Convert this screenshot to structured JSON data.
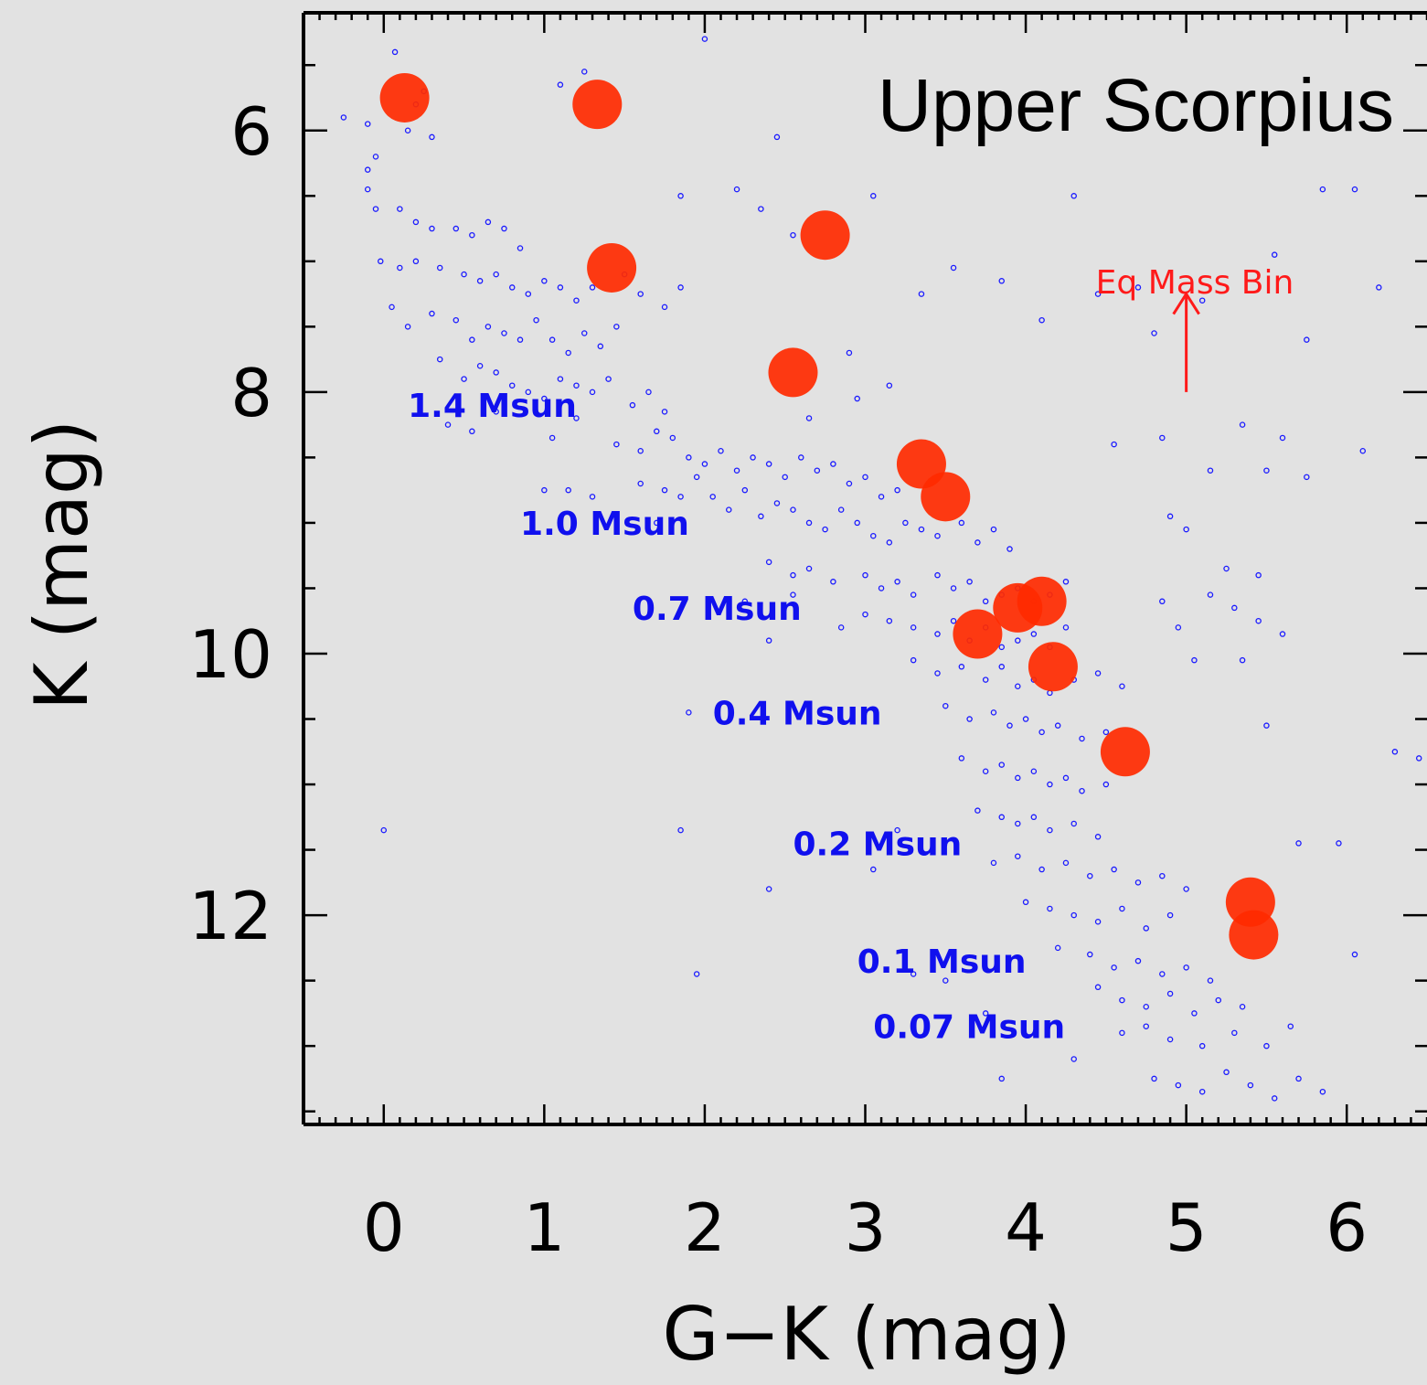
{
  "chart_data": {
    "type": "scatter",
    "title": "Upper Scorpius",
    "xlabel": "G−K (mag)",
    "ylabel": "K (mag)",
    "xlim": [
      -0.5,
      6.5
    ],
    "ylim": [
      13.6,
      5.1
    ],
    "y_inverted": true,
    "xticks": [
      "0",
      "1",
      "2",
      "3",
      "4",
      "5",
      "6"
    ],
    "yticks": [
      "6",
      "8",
      "10",
      "12"
    ],
    "grid": false,
    "colors": {
      "members": "#1a1aff",
      "binaries": "#ff2a00",
      "mass_labels": "#1010ee",
      "annotation": "#ff1a1a"
    },
    "annotation": {
      "text": "Eq Mass Bin",
      "arrow_from": [
        5.0,
        8.0
      ],
      "arrow_to": [
        5.0,
        7.25
      ]
    },
    "mass_labels": [
      {
        "text": "1.4 Msun",
        "x": 0.15,
        "y": 8.1
      },
      {
        "text": "1.0 Msun",
        "x": 0.85,
        "y": 9.0
      },
      {
        "text": "0.7 Msun",
        "x": 1.55,
        "y": 9.65
      },
      {
        "text": "0.4 Msun",
        "x": 2.05,
        "y": 10.45
      },
      {
        "text": "0.2 Msun",
        "x": 2.55,
        "y": 11.45
      },
      {
        "text": "0.1 Msun",
        "x": 2.95,
        "y": 12.35
      },
      {
        "text": "0.07 Msun",
        "x": 3.05,
        "y": 12.85
      }
    ],
    "series": [
      {
        "marker": "filled-circle",
        "points": [
          [
            0.13,
            5.75
          ],
          [
            1.33,
            5.8
          ],
          [
            1.42,
            7.05
          ],
          [
            2.75,
            6.8
          ],
          [
            2.55,
            7.85
          ],
          [
            3.35,
            8.55
          ],
          [
            3.5,
            8.8
          ],
          [
            3.7,
            9.85
          ],
          [
            3.95,
            9.65
          ],
          [
            4.1,
            9.6
          ],
          [
            4.17,
            10.1
          ],
          [
            4.62,
            10.75
          ],
          [
            5.4,
            11.9
          ],
          [
            5.42,
            12.15
          ]
        ]
      },
      {
        "marker": "open-circle",
        "points": [
          [
            0.07,
            5.4
          ],
          [
            0.2,
            5.8
          ],
          [
            0.25,
            5.7
          ],
          [
            -0.25,
            5.9
          ],
          [
            -0.1,
            5.95
          ],
          [
            0.15,
            6.0
          ],
          [
            0.3,
            6.05
          ],
          [
            -0.05,
            6.2
          ],
          [
            -0.1,
            6.3
          ],
          [
            -0.1,
            6.45
          ],
          [
            -0.05,
            6.6
          ],
          [
            0.1,
            6.6
          ],
          [
            0.2,
            6.7
          ],
          [
            0.3,
            6.75
          ],
          [
            0.45,
            6.75
          ],
          [
            0.55,
            6.8
          ],
          [
            0.65,
            6.7
          ],
          [
            0.75,
            6.75
          ],
          [
            0.85,
            6.9
          ],
          [
            -0.02,
            7.0
          ],
          [
            0.1,
            7.05
          ],
          [
            0.2,
            7.0
          ],
          [
            0.35,
            7.05
          ],
          [
            0.5,
            7.1
          ],
          [
            0.6,
            7.15
          ],
          [
            0.7,
            7.1
          ],
          [
            0.8,
            7.2
          ],
          [
            0.9,
            7.25
          ],
          [
            1.0,
            7.15
          ],
          [
            1.1,
            7.2
          ],
          [
            1.2,
            7.3
          ],
          [
            1.3,
            7.2
          ],
          [
            1.5,
            7.1
          ],
          [
            1.6,
            7.25
          ],
          [
            1.75,
            7.35
          ],
          [
            1.85,
            7.2
          ],
          [
            0.05,
            7.35
          ],
          [
            0.15,
            7.5
          ],
          [
            0.3,
            7.4
          ],
          [
            0.45,
            7.45
          ],
          [
            0.55,
            7.6
          ],
          [
            0.65,
            7.5
          ],
          [
            0.75,
            7.55
          ],
          [
            0.85,
            7.6
          ],
          [
            0.95,
            7.45
          ],
          [
            1.05,
            7.6
          ],
          [
            1.15,
            7.7
          ],
          [
            1.25,
            7.55
          ],
          [
            1.35,
            7.65
          ],
          [
            1.45,
            7.5
          ],
          [
            0.35,
            7.75
          ],
          [
            0.5,
            7.9
          ],
          [
            0.6,
            7.8
          ],
          [
            0.7,
            7.85
          ],
          [
            0.8,
            7.95
          ],
          [
            0.9,
            8.0
          ],
          [
            1.0,
            8.05
          ],
          [
            1.1,
            7.9
          ],
          [
            1.2,
            7.95
          ],
          [
            1.3,
            8.0
          ],
          [
            1.4,
            7.9
          ],
          [
            1.55,
            8.1
          ],
          [
            1.65,
            8.0
          ],
          [
            1.75,
            8.15
          ],
          [
            0.4,
            8.25
          ],
          [
            0.55,
            8.3
          ],
          [
            0.7,
            8.15
          ],
          [
            1.05,
            8.35
          ],
          [
            1.2,
            8.2
          ],
          [
            1.45,
            8.4
          ],
          [
            1.6,
            8.45
          ],
          [
            1.7,
            8.3
          ],
          [
            1.8,
            8.35
          ],
          [
            1.9,
            8.5
          ],
          [
            2.0,
            8.55
          ],
          [
            2.1,
            8.45
          ],
          [
            2.2,
            8.6
          ],
          [
            2.3,
            8.5
          ],
          [
            2.4,
            8.55
          ],
          [
            2.5,
            8.65
          ],
          [
            2.6,
            8.5
          ],
          [
            2.7,
            8.6
          ],
          [
            2.8,
            8.55
          ],
          [
            2.9,
            8.7
          ],
          [
            3.0,
            8.65
          ],
          [
            3.1,
            8.8
          ],
          [
            3.2,
            8.75
          ],
          [
            1.6,
            8.7
          ],
          [
            1.75,
            8.75
          ],
          [
            1.85,
            8.8
          ],
          [
            1.95,
            8.65
          ],
          [
            2.05,
            8.8
          ],
          [
            2.15,
            8.9
          ],
          [
            2.25,
            8.75
          ],
          [
            2.35,
            8.95
          ],
          [
            2.45,
            8.85
          ],
          [
            2.55,
            8.9
          ],
          [
            2.65,
            9.0
          ],
          [
            2.75,
            9.05
          ],
          [
            2.85,
            8.9
          ],
          [
            2.95,
            9.0
          ],
          [
            3.05,
            9.1
          ],
          [
            3.15,
            9.15
          ],
          [
            3.25,
            9.0
          ],
          [
            3.35,
            9.05
          ],
          [
            3.45,
            9.1
          ],
          [
            3.6,
            9.0
          ],
          [
            3.7,
            9.15
          ],
          [
            3.8,
            9.05
          ],
          [
            3.9,
            9.2
          ],
          [
            1.0,
            8.75
          ],
          [
            1.15,
            8.75
          ],
          [
            1.3,
            8.8
          ],
          [
            1.7,
            9.0
          ],
          [
            2.4,
            9.3
          ],
          [
            2.55,
            9.4
          ],
          [
            2.65,
            9.35
          ],
          [
            2.8,
            9.45
          ],
          [
            3.0,
            9.4
          ],
          [
            3.1,
            9.5
          ],
          [
            3.2,
            9.45
          ],
          [
            3.3,
            9.55
          ],
          [
            3.45,
            9.4
          ],
          [
            3.55,
            9.5
          ],
          [
            3.65,
            9.45
          ],
          [
            3.75,
            9.6
          ],
          [
            3.85,
            9.55
          ],
          [
            3.95,
            9.5
          ],
          [
            4.05,
            9.6
          ],
          [
            4.15,
            9.55
          ],
          [
            4.25,
            9.45
          ],
          [
            2.85,
            9.8
          ],
          [
            3.0,
            9.7
          ],
          [
            3.15,
            9.75
          ],
          [
            3.3,
            9.8
          ],
          [
            3.45,
            9.85
          ],
          [
            3.55,
            9.75
          ],
          [
            3.65,
            9.9
          ],
          [
            3.75,
            9.8
          ],
          [
            3.85,
            9.95
          ],
          [
            3.95,
            9.9
          ],
          [
            4.05,
            9.85
          ],
          [
            4.15,
            9.95
          ],
          [
            4.25,
            9.8
          ],
          [
            3.3,
            10.05
          ],
          [
            3.45,
            10.15
          ],
          [
            3.6,
            10.1
          ],
          [
            3.75,
            10.2
          ],
          [
            3.85,
            10.1
          ],
          [
            3.95,
            10.25
          ],
          [
            4.05,
            10.2
          ],
          [
            4.15,
            10.3
          ],
          [
            4.3,
            10.2
          ],
          [
            4.45,
            10.15
          ],
          [
            4.6,
            10.25
          ],
          [
            3.5,
            10.4
          ],
          [
            3.65,
            10.5
          ],
          [
            3.8,
            10.45
          ],
          [
            3.9,
            10.55
          ],
          [
            4.0,
            10.5
          ],
          [
            4.1,
            10.6
          ],
          [
            4.2,
            10.55
          ],
          [
            4.35,
            10.65
          ],
          [
            4.5,
            10.6
          ],
          [
            3.6,
            10.8
          ],
          [
            3.75,
            10.9
          ],
          [
            3.85,
            10.85
          ],
          [
            3.95,
            10.95
          ],
          [
            4.05,
            10.9
          ],
          [
            4.15,
            11.0
          ],
          [
            4.25,
            10.95
          ],
          [
            4.35,
            11.05
          ],
          [
            4.5,
            11.0
          ],
          [
            3.7,
            11.2
          ],
          [
            3.85,
            11.25
          ],
          [
            3.95,
            11.3
          ],
          [
            4.05,
            11.25
          ],
          [
            4.15,
            11.35
          ],
          [
            4.3,
            11.3
          ],
          [
            4.45,
            11.4
          ],
          [
            3.8,
            11.6
          ],
          [
            3.95,
            11.55
          ],
          [
            4.1,
            11.65
          ],
          [
            4.25,
            11.6
          ],
          [
            4.4,
            11.7
          ],
          [
            4.55,
            11.65
          ],
          [
            4.7,
            11.75
          ],
          [
            4.85,
            11.7
          ],
          [
            5.0,
            11.8
          ],
          [
            4.0,
            11.9
          ],
          [
            4.15,
            11.95
          ],
          [
            4.3,
            12.0
          ],
          [
            4.45,
            12.05
          ],
          [
            4.6,
            11.95
          ],
          [
            4.75,
            12.1
          ],
          [
            4.9,
            12.0
          ],
          [
            4.2,
            12.25
          ],
          [
            4.4,
            12.3
          ],
          [
            4.55,
            12.4
          ],
          [
            4.7,
            12.35
          ],
          [
            4.85,
            12.45
          ],
          [
            5.0,
            12.4
          ],
          [
            5.15,
            12.5
          ],
          [
            4.45,
            12.55
          ],
          [
            4.6,
            12.65
          ],
          [
            4.75,
            12.7
          ],
          [
            4.9,
            12.6
          ],
          [
            5.05,
            12.75
          ],
          [
            5.2,
            12.65
          ],
          [
            5.35,
            12.7
          ],
          [
            4.6,
            12.9
          ],
          [
            4.75,
            12.85
          ],
          [
            4.9,
            12.95
          ],
          [
            5.1,
            13.0
          ],
          [
            5.3,
            12.9
          ],
          [
            5.5,
            13.0
          ],
          [
            5.65,
            12.85
          ],
          [
            4.8,
            13.25
          ],
          [
            4.95,
            13.3
          ],
          [
            5.1,
            13.35
          ],
          [
            5.25,
            13.2
          ],
          [
            5.4,
            13.3
          ],
          [
            5.55,
            13.4
          ],
          [
            5.7,
            13.25
          ],
          [
            5.85,
            13.35
          ],
          [
            3.5,
            12.5
          ],
          [
            3.75,
            12.75
          ],
          [
            3.85,
            13.25
          ],
          [
            4.3,
            13.1
          ],
          [
            3.3,
            12.45
          ],
          [
            3.2,
            11.35
          ],
          [
            3.05,
            11.65
          ],
          [
            2.4,
            11.8
          ],
          [
            1.85,
            11.35
          ],
          [
            1.9,
            10.45
          ],
          [
            1.95,
            12.45
          ],
          [
            0.0,
            11.35
          ],
          [
            2.4,
            9.9
          ],
          [
            2.55,
            9.55
          ],
          [
            2.25,
            9.6
          ],
          [
            5.0,
            9.05
          ],
          [
            5.15,
            9.55
          ],
          [
            5.3,
            9.65
          ],
          [
            5.45,
            9.75
          ],
          [
            5.6,
            9.85
          ],
          [
            5.25,
            9.35
          ],
          [
            5.45,
            9.4
          ],
          [
            4.85,
            9.6
          ],
          [
            4.95,
            9.8
          ],
          [
            5.05,
            10.05
          ],
          [
            5.35,
            10.05
          ],
          [
            5.5,
            10.55
          ],
          [
            5.7,
            11.45
          ],
          [
            5.95,
            11.45
          ],
          [
            6.05,
            12.3
          ],
          [
            6.3,
            10.75
          ],
          [
            6.45,
            10.8
          ],
          [
            6.2,
            7.2
          ],
          [
            6.1,
            8.45
          ],
          [
            5.75,
            8.65
          ],
          [
            5.6,
            8.35
          ],
          [
            5.35,
            8.25
          ],
          [
            5.15,
            8.6
          ],
          [
            4.85,
            8.35
          ],
          [
            4.55,
            8.4
          ],
          [
            4.7,
            7.2
          ],
          [
            4.9,
            8.95
          ],
          [
            5.5,
            8.6
          ],
          [
            5.75,
            7.6
          ],
          [
            6.05,
            6.45
          ],
          [
            5.55,
            6.95
          ],
          [
            5.85,
            6.45
          ],
          [
            4.3,
            6.5
          ],
          [
            4.45,
            7.25
          ],
          [
            4.8,
            7.55
          ],
          [
            5.1,
            7.3
          ],
          [
            3.85,
            7.15
          ],
          [
            4.1,
            7.45
          ],
          [
            3.55,
            7.05
          ],
          [
            3.35,
            7.25
          ],
          [
            3.15,
            7.95
          ],
          [
            2.9,
            7.7
          ],
          [
            2.95,
            8.05
          ],
          [
            2.65,
            8.2
          ],
          [
            3.05,
            6.5
          ],
          [
            2.55,
            6.8
          ],
          [
            2.2,
            6.45
          ],
          [
            2.45,
            6.05
          ],
          [
            2.0,
            5.3
          ],
          [
            1.25,
            5.55
          ],
          [
            1.1,
            5.65
          ],
          [
            1.85,
            6.5
          ],
          [
            2.35,
            6.6
          ]
        ]
      }
    ]
  }
}
